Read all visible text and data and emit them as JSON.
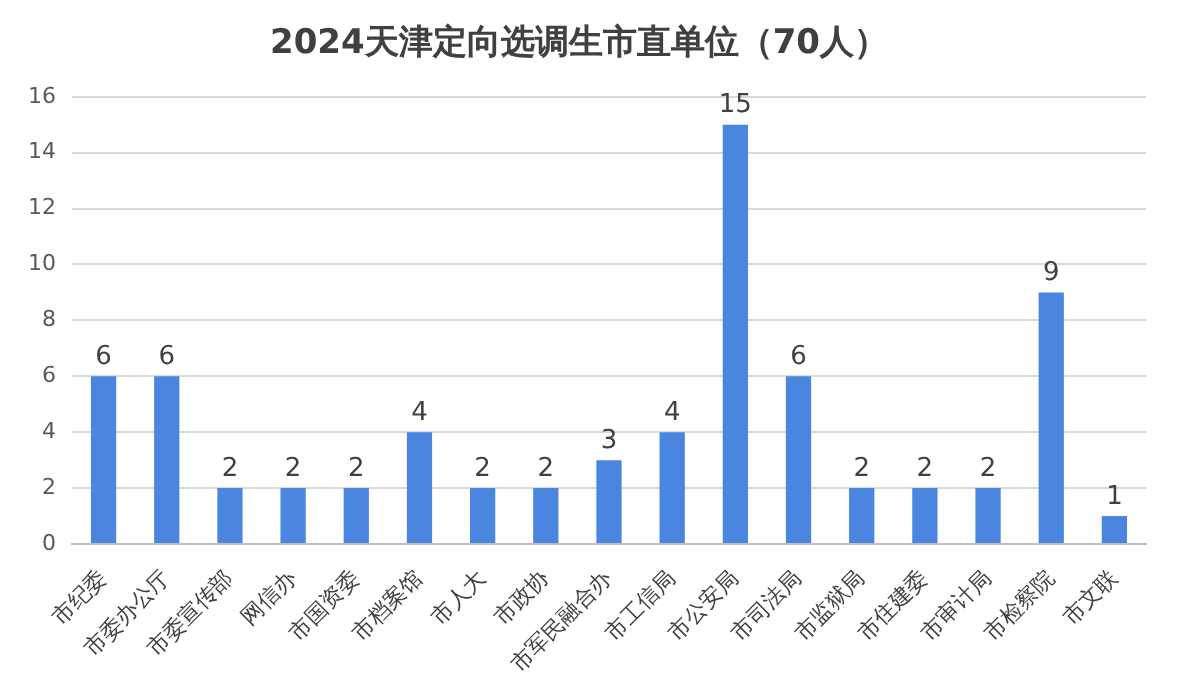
{
  "chart_data": {
    "type": "bar",
    "title": "2024天津定向选调生市直单位（70人）",
    "categories": [
      "市纪委",
      "市委办公厅",
      "市委宣传部",
      "网信办",
      "市国资委",
      "市档案馆",
      "市人大",
      "市政协",
      "市军民融合办",
      "市工信局",
      "市公安局",
      "市司法局",
      "市监狱局",
      "市住建委",
      "市审计局",
      "市检察院",
      "市文联"
    ],
    "values": [
      6,
      6,
      2,
      2,
      2,
      4,
      2,
      2,
      3,
      4,
      15,
      6,
      2,
      2,
      2,
      9,
      1
    ],
    "color": "#4a86e0",
    "ylim": [
      0,
      16
    ],
    "yticks": [
      0,
      2,
      4,
      6,
      8,
      10,
      12,
      14,
      16
    ],
    "grid": "y",
    "data_labels": true
  }
}
